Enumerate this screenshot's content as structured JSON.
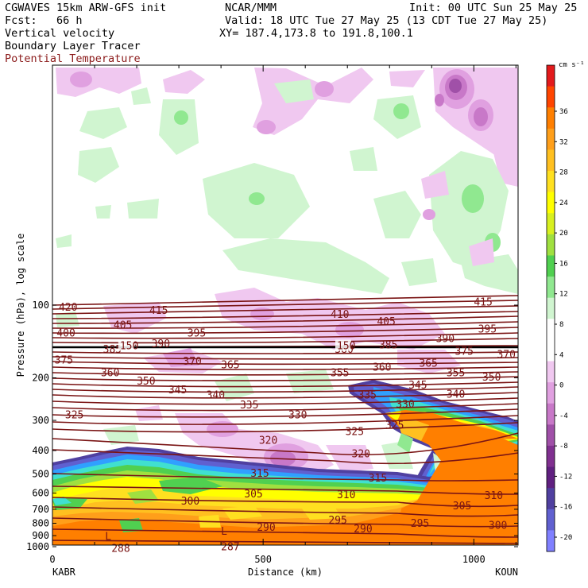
{
  "header": {
    "model_line": "CGWAVES 15km ARW-GFS init",
    "org": "NCAR/MMM",
    "init": "Init: 00 UTC Sun 25 May 25",
    "fcst": "Fcst:   66 h",
    "valid": "Valid: 18 UTC Tue 27 May 25 (13 CDT Tue 27 May 25)",
    "field1": "Vertical velocity",
    "field2": "Boundary Layer Tracer",
    "field3": "Potential Temperature",
    "xy": "XY= 187.4,173.8 to 191.8,100.1"
  },
  "colors": {
    "theta_contour": "#7a1414",
    "frame": "#000000"
  },
  "chart_data": {
    "type": "cross-section",
    "xlabel": "Distance (km)",
    "ylabel": "Pressure (hPa), log scale",
    "x_ticks": [
      "0",
      "500",
      "1000"
    ],
    "x_tick_values": [
      0,
      500,
      1000
    ],
    "xlim": [
      0,
      1105
    ],
    "y_ticks": [
      "100",
      "200",
      "300",
      "400",
      "500",
      "600",
      "700",
      "800",
      "900",
      "1000"
    ],
    "y_tick_values": [
      100,
      200,
      300,
      400,
      500,
      600,
      700,
      800,
      900,
      1000
    ],
    "endpoints": {
      "left": "KABR",
      "right": "KOUN"
    },
    "colorbar": {
      "unit": "cm s⁻¹",
      "labels": [
        "36",
        "32",
        "28",
        "24",
        "20",
        "16",
        "12",
        "8",
        "4",
        "0",
        "-4",
        "-8",
        "-12",
        "-16",
        "-20"
      ],
      "colors": [
        "#e31a1c",
        "#ff4500",
        "#ff7f00",
        "#ff9f1a",
        "#ffc020",
        "#ffe020",
        "#ffff00",
        "#d8f020",
        "#a0e040",
        "#50d050",
        "#90e890",
        "#d0f5d0",
        "#ffffff",
        "#ffffff",
        "#f0c8f0",
        "#e0a0e0",
        "#c878c8",
        "#a050a8",
        "#803090",
        "#602080",
        "#5040a0",
        "#6060d0",
        "#8080ff"
      ]
    },
    "theta_labels": [
      {
        "text": "420",
        "x": 15,
        "p": 104
      },
      {
        "text": "415",
        "x": 230,
        "p": 107
      },
      {
        "text": "410",
        "x": 660,
        "p": 111
      },
      {
        "text": "415",
        "x": 1000,
        "p": 99
      },
      {
        "text": "405",
        "x": 145,
        "p": 123
      },
      {
        "text": "405",
        "x": 770,
        "p": 119
      },
      {
        "text": "400",
        "x": 10,
        "p": 133
      },
      {
        "text": "395",
        "x": 320,
        "p": 133
      },
      {
        "text": "390",
        "x": 235,
        "p": 147
      },
      {
        "text": "390",
        "x": 910,
        "p": 140
      },
      {
        "text": "395",
        "x": 1010,
        "p": 128
      },
      {
        "text": "385",
        "x": 120,
        "p": 155
      },
      {
        "text": "385",
        "x": 775,
        "p": 149
      },
      {
        "text": "380",
        "x": 670,
        "p": 155
      },
      {
        "text": "375",
        "x": 955,
        "p": 158
      },
      {
        "text": "375",
        "x": 5,
        "p": 172
      },
      {
        "text": "370",
        "x": 310,
        "p": 174
      },
      {
        "text": "370",
        "x": 1055,
        "p": 163
      },
      {
        "text": "365",
        "x": 400,
        "p": 180
      },
      {
        "text": "365",
        "x": 870,
        "p": 177
      },
      {
        "text": "360",
        "x": 115,
        "p": 194
      },
      {
        "text": "360",
        "x": 760,
        "p": 184
      },
      {
        "text": "355",
        "x": 660,
        "p": 194
      },
      {
        "text": "355",
        "x": 935,
        "p": 194
      },
      {
        "text": "350",
        "x": 200,
        "p": 210
      },
      {
        "text": "350",
        "x": 1020,
        "p": 202
      },
      {
        "text": "345",
        "x": 275,
        "p": 228
      },
      {
        "text": "345",
        "x": 845,
        "p": 218
      },
      {
        "text": "340",
        "x": 365,
        "p": 240
      },
      {
        "text": "340",
        "x": 935,
        "p": 238
      },
      {
        "text": "335",
        "x": 445,
        "p": 264
      },
      {
        "text": "335",
        "x": 725,
        "p": 240
      },
      {
        "text": "330",
        "x": 560,
        "p": 290
      },
      {
        "text": "330",
        "x": 815,
        "p": 262
      },
      {
        "text": "325",
        "x": 30,
        "p": 290
      },
      {
        "text": "325",
        "x": 695,
        "p": 340
      },
      {
        "text": "325",
        "x": 790,
        "p": 320
      },
      {
        "text": "320",
        "x": 490,
        "p": 370
      },
      {
        "text": "320",
        "x": 710,
        "p": 420
      },
      {
        "text": "315",
        "x": 470,
        "p": 505
      },
      {
        "text": "315",
        "x": 750,
        "p": 530
      },
      {
        "text": "310",
        "x": 675,
        "p": 620
      },
      {
        "text": "310",
        "x": 1025,
        "p": 625
      },
      {
        "text": "305",
        "x": 455,
        "p": 615
      },
      {
        "text": "305",
        "x": 950,
        "p": 690
      },
      {
        "text": "300",
        "x": 305,
        "p": 660
      },
      {
        "text": "300",
        "x": 1035,
        "p": 830
      },
      {
        "text": "295",
        "x": 655,
        "p": 790
      },
      {
        "text": "295",
        "x": 850,
        "p": 815
      },
      {
        "text": "290",
        "x": 485,
        "p": 845
      },
      {
        "text": "290",
        "x": 715,
        "p": 860
      },
      {
        "text": "288",
        "x": 140,
        "p": 1035
      },
      {
        "text": "287",
        "x": 400,
        "p": 1020
      },
      {
        "text": "150",
        "x": 160,
        "p": 150
      },
      {
        "text": "150",
        "x": 675,
        "p": 150
      },
      {
        "text": "L",
        "x": 125,
        "p": 925
      },
      {
        "text": "L",
        "x": 400,
        "p": 880
      }
    ]
  }
}
